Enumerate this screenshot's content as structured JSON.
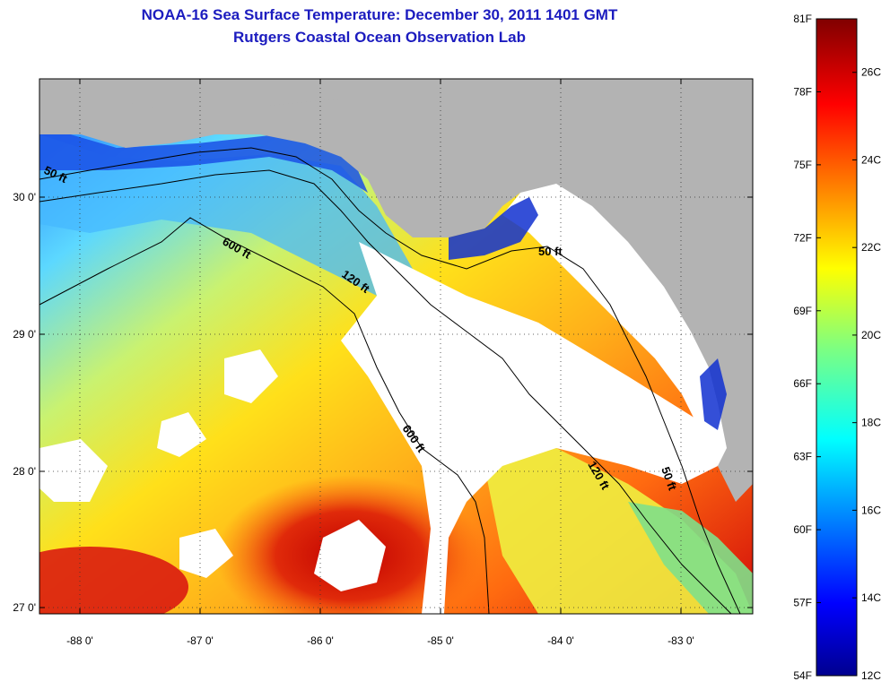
{
  "title": {
    "line1": "NOAA-16 Sea Surface Temperature:  December 30, 2011 1401 GMT",
    "line2": "Rutgers Coastal Ocean Observation Lab"
  },
  "map": {
    "lon_ticks": [
      "-88 0'",
      "-87 0'",
      "-86 0'",
      "-85 0'",
      "-84 0'",
      "-83 0'"
    ],
    "lat_ticks": [
      "30 0'",
      "29 0'",
      "28 0'",
      "27 0'"
    ],
    "lon_range": [
      -88.35,
      -82.4
    ],
    "lat_range": [
      26.95,
      30.85
    ],
    "land_color": "#b3b3b3",
    "cloud_color": "#ffffff",
    "grid": "dotted"
  },
  "contours": {
    "labels": [
      "50 ft",
      "600 ft",
      "120 ft",
      "50 ft",
      "600 ft",
      "120 ft",
      "50 ft"
    ]
  },
  "colorbar": {
    "fahrenheit_labels": [
      "81F",
      "78F",
      "75F",
      "72F",
      "69F",
      "66F",
      "63F",
      "60F",
      "57F",
      "54F"
    ],
    "celsius_labels": [
      "26C",
      "24C",
      "22C",
      "20C",
      "18C",
      "16C",
      "14C",
      "12C"
    ],
    "fahrenheit_values": [
      81,
      78,
      75,
      72,
      69,
      66,
      63,
      60,
      57,
      54
    ],
    "celsius_values": [
      26,
      24,
      22,
      20,
      18,
      16,
      14,
      12
    ],
    "range_f": [
      54,
      81
    ],
    "colormap": "jet"
  }
}
